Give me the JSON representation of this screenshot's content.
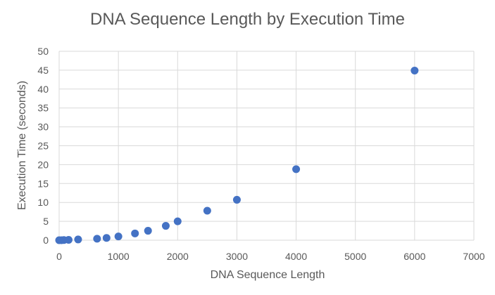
{
  "chart_data": {
    "type": "scatter",
    "title": "DNA Sequence Length by Execution Time",
    "xlabel": "DNA Sequence Length",
    "ylabel": "Execution Time (seconds)",
    "xlim": [
      0,
      7000
    ],
    "ylim": [
      0,
      50
    ],
    "xticks": [
      0,
      1000,
      2000,
      3000,
      4000,
      5000,
      6000,
      7000
    ],
    "yticks": [
      0,
      5,
      10,
      15,
      20,
      25,
      30,
      35,
      40,
      45,
      50
    ],
    "grid": true,
    "legend": "none",
    "marker_color": "#4472C4",
    "series": [
      {
        "points": [
          {
            "x": 0,
            "y": 0.0
          },
          {
            "x": 40,
            "y": 0.0
          },
          {
            "x": 80,
            "y": 0.05
          },
          {
            "x": 160,
            "y": 0.1
          },
          {
            "x": 320,
            "y": 0.2
          },
          {
            "x": 640,
            "y": 0.4
          },
          {
            "x": 800,
            "y": 0.6
          },
          {
            "x": 1000,
            "y": 1.0
          },
          {
            "x": 1280,
            "y": 1.8
          },
          {
            "x": 1500,
            "y": 2.5
          },
          {
            "x": 1800,
            "y": 3.8
          },
          {
            "x": 2000,
            "y": 5.0
          },
          {
            "x": 2500,
            "y": 7.8
          },
          {
            "x": 3000,
            "y": 10.7
          },
          {
            "x": 4000,
            "y": 18.8
          },
          {
            "x": 6000,
            "y": 44.9
          }
        ]
      }
    ]
  }
}
